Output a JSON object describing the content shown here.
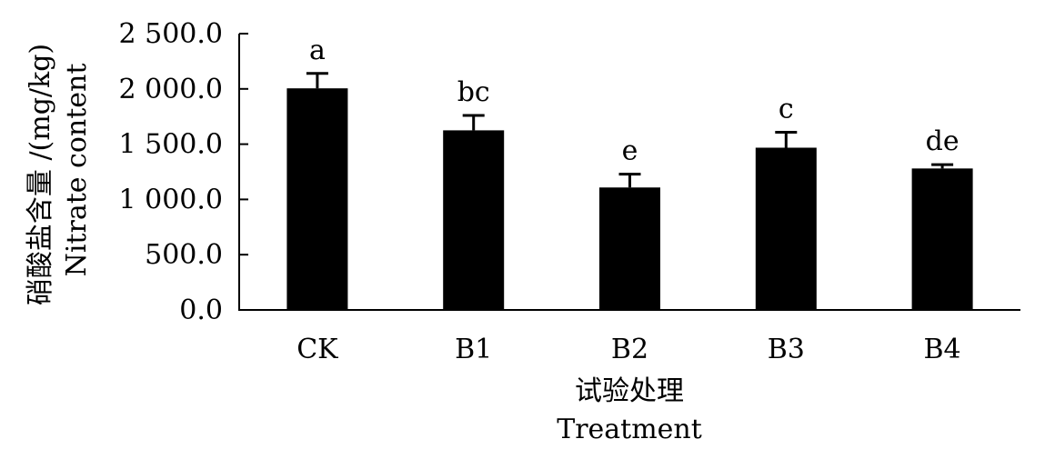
{
  "chart_data": {
    "type": "bar",
    "categories": [
      "CK",
      "B1",
      "B2",
      "B3",
      "B4"
    ],
    "values": [
      2005,
      1625,
      1108,
      1468,
      1280
    ],
    "errors": [
      135,
      135,
      120,
      140,
      35
    ],
    "significance_letters": [
      "a",
      "bc",
      "e",
      "c",
      "de"
    ],
    "ylim": [
      0,
      2500
    ],
    "yticks": [
      0,
      500,
      1000,
      1500,
      2000,
      2500
    ],
    "ytick_labels": [
      "0.0",
      "500.0",
      "1 000.0",
      "1 500.0",
      "2 000.0",
      "2 500.0"
    ],
    "xlabel_cn": "试验处理",
    "xlabel_en": "Treatment",
    "ylabel_cn": "硝酸盐含量 /(mg/kg)",
    "ylabel_en": "Nitrate content",
    "bar_color": "#000000",
    "grid": false
  }
}
